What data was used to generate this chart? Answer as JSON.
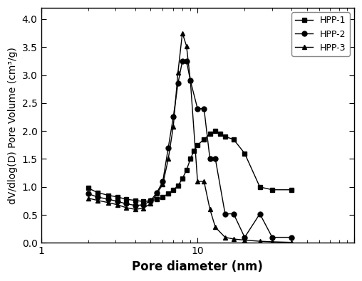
{
  "title": "",
  "xlabel": "Pore diameter (nm)",
  "ylabel": "dV/dlog(D) Pore Volume (cm³/g)",
  "xscale": "log",
  "xlim": [
    1,
    100
  ],
  "ylim": [
    0.0,
    4.2
  ],
  "yticks": [
    0.0,
    0.5,
    1.0,
    1.5,
    2.0,
    2.5,
    3.0,
    3.5,
    4.0
  ],
  "series": {
    "HPP-1": {
      "x": [
        2.0,
        2.3,
        2.7,
        3.1,
        3.5,
        4.0,
        4.5,
        5.0,
        5.5,
        6.0,
        6.5,
        7.0,
        7.5,
        8.0,
        8.5,
        9.0,
        9.5,
        10.0,
        11.0,
        12.0,
        13.0,
        14.0,
        15.0,
        17.0,
        20.0,
        25.0,
        30.0,
        40.0
      ],
      "y": [
        0.98,
        0.9,
        0.85,
        0.82,
        0.78,
        0.76,
        0.74,
        0.75,
        0.78,
        0.82,
        0.88,
        0.95,
        1.02,
        1.15,
        1.3,
        1.5,
        1.65,
        1.75,
        1.85,
        1.95,
        2.0,
        1.95,
        1.9,
        1.85,
        1.6,
        1.0,
        0.95,
        0.95
      ],
      "marker": "s",
      "color": "#000000"
    },
    "HPP-2": {
      "x": [
        2.0,
        2.3,
        2.7,
        3.1,
        3.5,
        4.0,
        4.5,
        5.0,
        5.5,
        6.0,
        6.5,
        7.0,
        7.5,
        8.0,
        8.5,
        9.0,
        10.0,
        11.0,
        12.0,
        13.0,
        15.0,
        17.0,
        20.0,
        25.0,
        30.0,
        40.0
      ],
      "y": [
        0.88,
        0.82,
        0.78,
        0.74,
        0.7,
        0.67,
        0.68,
        0.75,
        0.9,
        1.1,
        1.7,
        2.25,
        2.85,
        3.25,
        3.25,
        2.9,
        2.4,
        2.4,
        1.5,
        1.5,
        0.52,
        0.52,
        0.1,
        0.52,
        0.1,
        0.1
      ],
      "marker": "o",
      "color": "#000000"
    },
    "HPP-3": {
      "x": [
        2.0,
        2.3,
        2.7,
        3.1,
        3.5,
        4.0,
        4.5,
        5.0,
        5.5,
        6.0,
        6.5,
        7.0,
        7.5,
        8.0,
        8.5,
        9.0,
        10.0,
        11.0,
        12.0,
        13.0,
        15.0,
        17.0,
        20.0,
        25.0,
        30.0,
        40.0
      ],
      "y": [
        0.8,
        0.76,
        0.72,
        0.68,
        0.63,
        0.6,
        0.62,
        0.7,
        0.88,
        1.05,
        1.5,
        2.08,
        3.05,
        3.75,
        3.52,
        2.9,
        1.1,
        1.1,
        0.6,
        0.28,
        0.1,
        0.07,
        0.05,
        0.03,
        0.02,
        0.01
      ],
      "marker": "^",
      "color": "#000000"
    }
  },
  "legend_loc": "upper right",
  "background_color": "#ffffff",
  "markersize": 5,
  "linewidth": 1.0
}
